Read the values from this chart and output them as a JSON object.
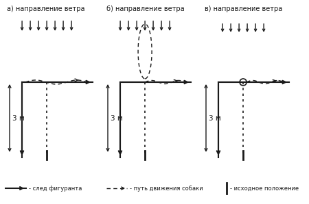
{
  "title_a": "а) направление ветра",
  "title_b": "б) направление ветра",
  "title_c": "в) направление ветра",
  "label_track": "- след фигуранта",
  "label_dog": "- путь движения собаки",
  "label_pos": "- исходное положение",
  "dim_label": "3 м",
  "bg_color": "#ffffff",
  "line_color": "#1a1a1a",
  "wind_n_a": 7,
  "wind_n_b": 7,
  "wind_n_c": 6
}
